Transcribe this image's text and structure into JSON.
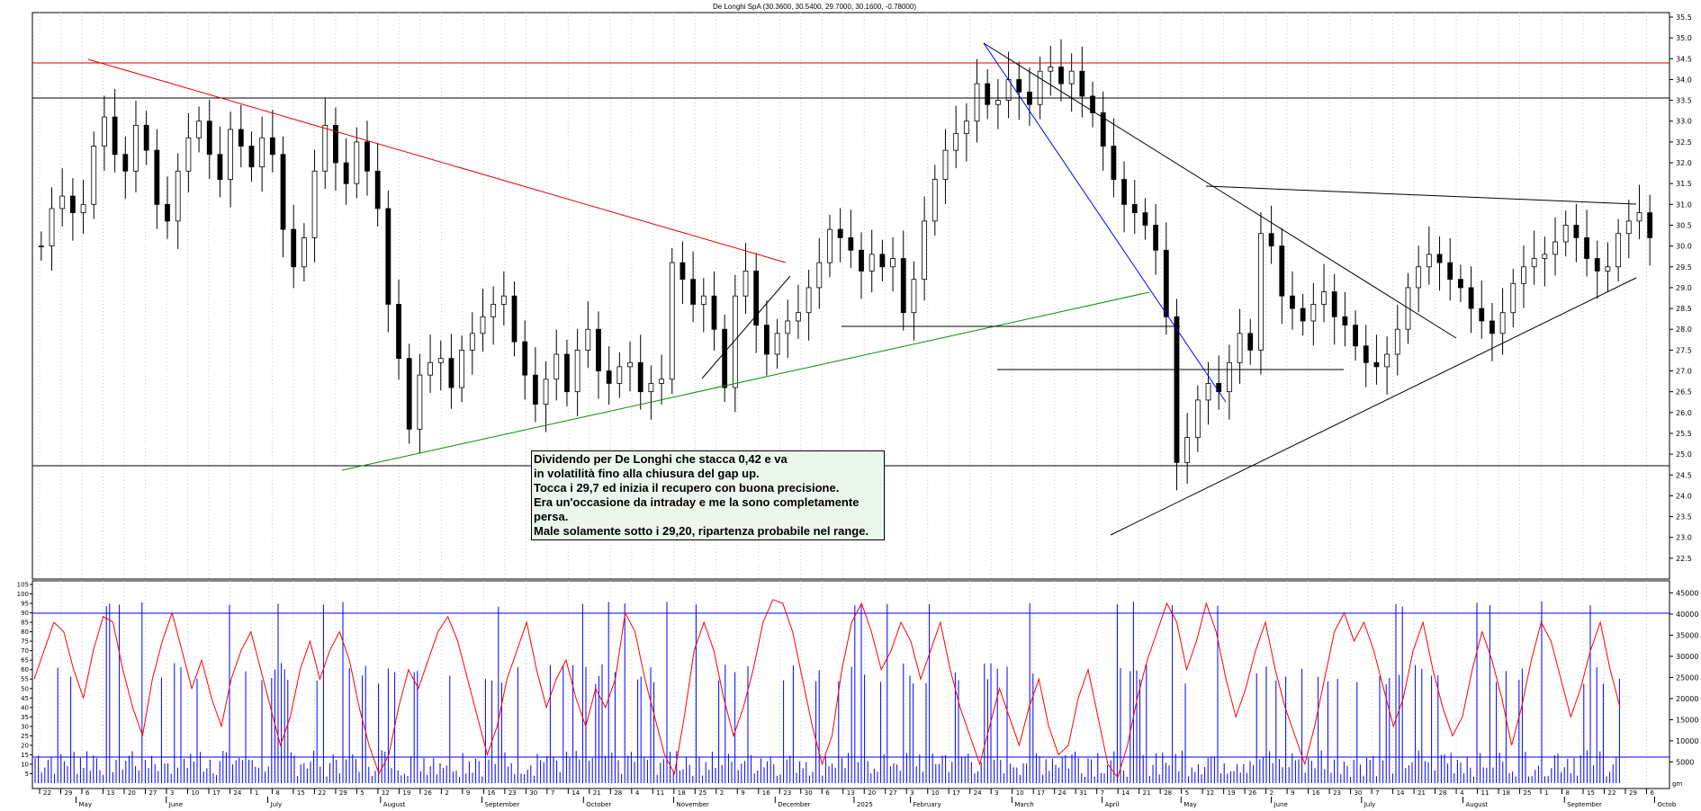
{
  "chart_data": [
    {
      "type": "candlestick",
      "title": "De Longhi SpA (30.3600, 30.5400, 29.7000, 30.1600, -0.78000)",
      "ylim": [
        22.0,
        35.5
      ],
      "y_ticks": [
        "22.5",
        "23.0",
        "23.5",
        "24.0",
        "24.5",
        "25.0",
        "25.5",
        "26.0",
        "26.5",
        "27.0",
        "27.5",
        "28.0",
        "28.5",
        "29.0",
        "29.5",
        "30.0",
        "30.5",
        "31.0",
        "31.5",
        "32.0",
        "32.5",
        "33.0",
        "33.5",
        "34.0",
        "34.5",
        "35.0",
        "35.5"
      ],
      "grid": true,
      "legend": "none",
      "series": [
        {
          "values_close_approx": [
            30.0,
            30.9,
            31.2,
            30.8,
            31.0,
            32.4,
            33.1,
            32.2,
            31.8,
            32.9,
            32.3,
            31.0,
            30.6,
            31.8,
            32.6,
            33.0,
            32.2,
            31.6,
            32.8,
            32.4,
            31.9,
            32.6,
            32.2,
            30.4,
            29.5,
            30.2,
            31.8,
            32.9,
            32.0,
            31.5,
            32.5,
            31.8,
            30.9,
            28.6,
            27.3,
            25.6,
            26.9,
            27.2,
            27.3,
            26.6,
            27.5,
            27.9,
            28.3,
            28.6,
            28.8,
            27.7,
            26.9,
            26.2,
            26.8,
            27.4,
            26.5,
            27.5,
            28.0,
            27.0,
            26.7,
            27.1,
            27.2,
            26.5,
            26.7,
            26.8,
            29.6,
            29.2,
            28.6,
            28.8,
            28.0,
            26.6,
            28.8,
            29.4,
            28.1,
            27.4,
            27.9,
            28.2,
            28.4,
            29.0,
            29.6,
            30.4,
            30.2,
            29.9,
            29.4,
            29.8,
            29.5,
            29.7,
            28.4,
            29.2,
            30.6,
            31.6,
            32.3,
            32.7,
            33.0,
            33.9,
            33.4,
            33.5,
            34.0,
            33.7,
            33.4,
            34.2,
            34.3,
            33.9,
            34.2,
            33.6,
            33.2,
            32.4,
            31.6,
            31.0,
            30.8,
            30.5,
            29.9,
            28.3,
            24.8,
            25.4,
            26.3,
            26.7,
            26.5,
            27.2,
            27.9,
            27.5,
            30.3,
            30.0,
            28.8,
            28.5,
            28.2,
            28.6,
            28.9,
            28.3,
            28.1,
            27.6,
            27.2,
            27.1,
            27.4,
            28.0,
            29.0,
            29.5,
            29.8,
            29.6,
            29.2,
            29.0,
            28.5,
            28.2,
            27.9,
            28.4,
            29.1,
            29.5,
            29.7,
            29.8,
            30.1,
            30.5,
            30.2,
            29.7,
            29.4,
            29.5,
            30.3,
            30.6,
            30.8,
            30.2
          ]
        }
      ],
      "lines": [
        {
          "name": "resistance-34.45",
          "color": "#e00000",
          "y": 34.45
        },
        {
          "name": "resistance-33.6",
          "color": "#000000",
          "y": 33.6
        },
        {
          "name": "support-24.9",
          "color": "#000000",
          "y": 24.9
        }
      ],
      "annotation": [
        "Dividendo per De Longhi che stacca 0,42 e va",
        "in volatilità fino alla chiusura del gap up.",
        "Tocca i 29,7 ed inizia il recupero con buona precisione.",
        "Era un'occasione da intraday e me la sono completamente",
        "persa.",
        "Male solamente sotto i 29,20, ripartenza probabile nel range."
      ]
    },
    {
      "type": "line+bar",
      "ylim_left": [
        0,
        105
      ],
      "ylim_right": [
        0,
        47000
      ],
      "y_ticks_left": [
        "5",
        "10",
        "15",
        "20",
        "25",
        "30",
        "35",
        "40",
        "45",
        "50",
        "55",
        "60",
        "65",
        "70",
        "75",
        "80",
        "85",
        "90",
        "95",
        "100",
        "105"
      ],
      "y_ticks_right": [
        "5000",
        "10000",
        "15000",
        "20000",
        "25000",
        "30000",
        "35000",
        "40000",
        "45000"
      ],
      "levels": [
        90,
        10
      ],
      "oscillator_approx": [
        55,
        70,
        85,
        80,
        60,
        45,
        70,
        88,
        85,
        60,
        40,
        25,
        55,
        75,
        90,
        70,
        50,
        65,
        45,
        30,
        55,
        70,
        80,
        60,
        40,
        20,
        35,
        60,
        75,
        55,
        70,
        80,
        65,
        40,
        20,
        5,
        15,
        40,
        60,
        50,
        65,
        80,
        88,
        75,
        55,
        35,
        15,
        30,
        55,
        70,
        85,
        60,
        40,
        55,
        65,
        45,
        30,
        50,
        40,
        55,
        90,
        80,
        55,
        35,
        15,
        5,
        35,
        70,
        85,
        70,
        45,
        25,
        40,
        60,
        85,
        97,
        95,
        80,
        55,
        30,
        10,
        25,
        60,
        85,
        95,
        80,
        60,
        70,
        85,
        75,
        55,
        70,
        85,
        60,
        40,
        25,
        10,
        30,
        50,
        35,
        20,
        40,
        55,
        30,
        15,
        20,
        45,
        60,
        35,
        10,
        3,
        20,
        45,
        65,
        80,
        95,
        85,
        60,
        75,
        95,
        80,
        55,
        35,
        50,
        70,
        85,
        60,
        40,
        25,
        10,
        30,
        55,
        80,
        90,
        75,
        85,
        70,
        50,
        30,
        45,
        70,
        85,
        60,
        40,
        25,
        35,
        60,
        80,
        65,
        45,
        20,
        40,
        65,
        85,
        75,
        55,
        35,
        50,
        70,
        85,
        60,
        40
      ]
    }
  ],
  "x_axis": {
    "tick_labels": [
      "22",
      "29",
      "6",
      "13",
      "20",
      "27",
      "3",
      "10",
      "17",
      "24",
      "1",
      "8",
      "15",
      "22",
      "29",
      "5",
      "12",
      "19",
      "26",
      "2",
      "9",
      "16",
      "23",
      "30",
      "7",
      "14",
      "21",
      "28",
      "4",
      "11",
      "18",
      "25",
      "2",
      "9",
      "16",
      "23",
      "30",
      "6",
      "13",
      "20",
      "27",
      "3",
      "10",
      "17",
      "24",
      "3",
      "10",
      "17",
      "24",
      "31",
      "7",
      "14",
      "21",
      "28",
      "5",
      "12",
      "19",
      "26",
      "2",
      "9",
      "16",
      "23",
      "30",
      "7",
      "14",
      "21",
      "28",
      "4",
      "11",
      "18",
      "25",
      "1",
      "8",
      "15",
      "22",
      "29",
      "6"
    ],
    "month_labels": [
      "May",
      "June",
      "July",
      "August",
      "September",
      "October",
      "November",
      "December",
      "2025",
      "February",
      "March",
      "April",
      "May",
      "June",
      "July",
      "August",
      "September",
      "Octob"
    ]
  },
  "corner_label": "gm"
}
